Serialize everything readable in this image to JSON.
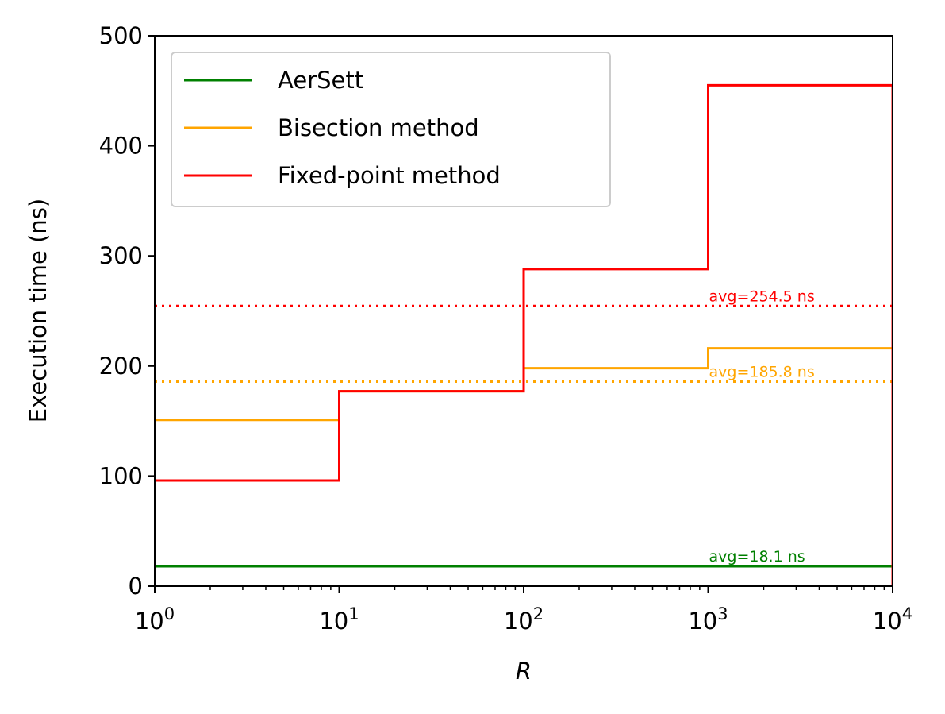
{
  "chart_data": {
    "type": "line",
    "step": true,
    "xscale": "log",
    "xlabel": "R",
    "ylabel": "Execution time (ns)",
    "xlim": [
      1,
      10000
    ],
    "ylim": [
      0,
      500
    ],
    "x_ticks": [
      {
        "value": 1,
        "base": "10",
        "exp": "0"
      },
      {
        "value": 10,
        "base": "10",
        "exp": "1"
      },
      {
        "value": 100,
        "base": "10",
        "exp": "2"
      },
      {
        "value": 1000,
        "base": "10",
        "exp": "3"
      },
      {
        "value": 10000,
        "base": "10",
        "exp": "4"
      }
    ],
    "y_ticks": [
      0,
      100,
      200,
      300,
      400,
      500
    ],
    "bin_edges": [
      1,
      10,
      100,
      1000,
      10000
    ],
    "legend_position": "upper-left",
    "series": [
      {
        "name": "AerSett",
        "color": "#008000",
        "values": [
          18,
          18,
          18,
          18
        ],
        "avg": 18.1,
        "avg_label": "avg=18.1 ns"
      },
      {
        "name": "Bisection method",
        "color": "#ffa500",
        "values": [
          151,
          177,
          198,
          216
        ],
        "avg": 185.8,
        "avg_label": "avg=185.8 ns"
      },
      {
        "name": "Fixed-point method",
        "color": "#ff0000",
        "values": [
          96,
          177,
          288,
          455
        ],
        "avg": 254.5,
        "avg_label": "avg=254.5 ns"
      }
    ]
  }
}
